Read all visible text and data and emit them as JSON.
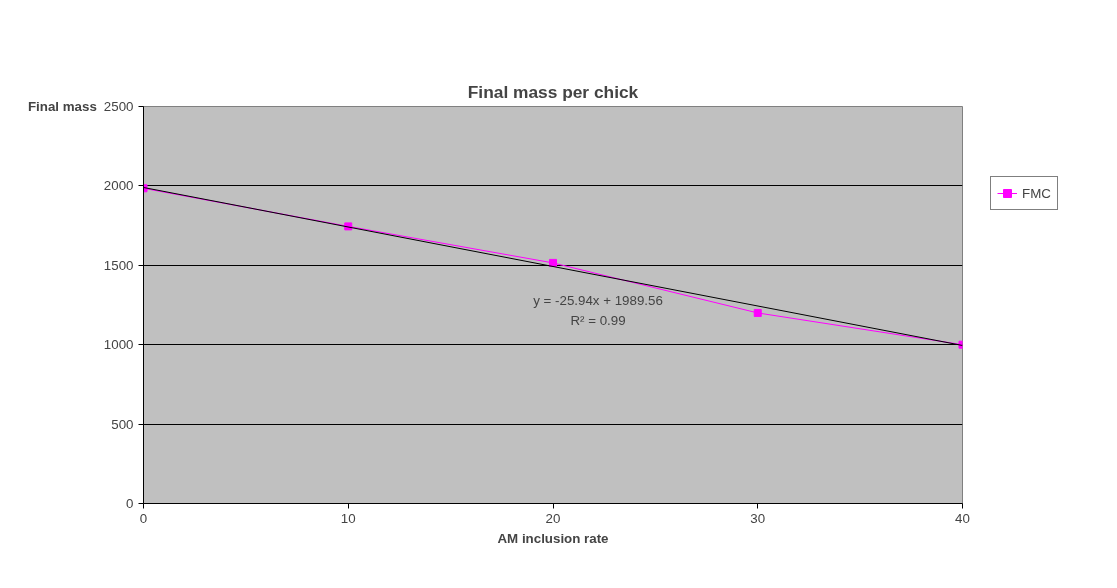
{
  "chart_data": {
    "type": "line",
    "title": "Final mass per chick",
    "xlabel": "AM inclusion rate",
    "ylabel": "Final mass",
    "x": [
      0,
      10,
      20,
      30,
      40
    ],
    "series": [
      {
        "name": "FMC",
        "color": "#ff00ff",
        "values": [
          1985,
          1745,
          1515,
          1200,
          1000
        ],
        "marker": "square"
      },
      {
        "type": "line",
        "color": "#000000",
        "x": [
          0,
          40
        ],
        "values": [
          1990,
          995
        ],
        "marker": "none"
      }
    ],
    "xlim": [
      0,
      40
    ],
    "xticks": [
      0,
      10,
      20,
      30,
      40
    ],
    "ylim": [
      0,
      2500
    ],
    "yticks": [
      0,
      500,
      1000,
      1500,
      2000,
      2500
    ],
    "grid": "y",
    "legend": "right",
    "annotations": [
      "y = -25.94x + 1989.56",
      "R² = 0.99"
    ]
  }
}
